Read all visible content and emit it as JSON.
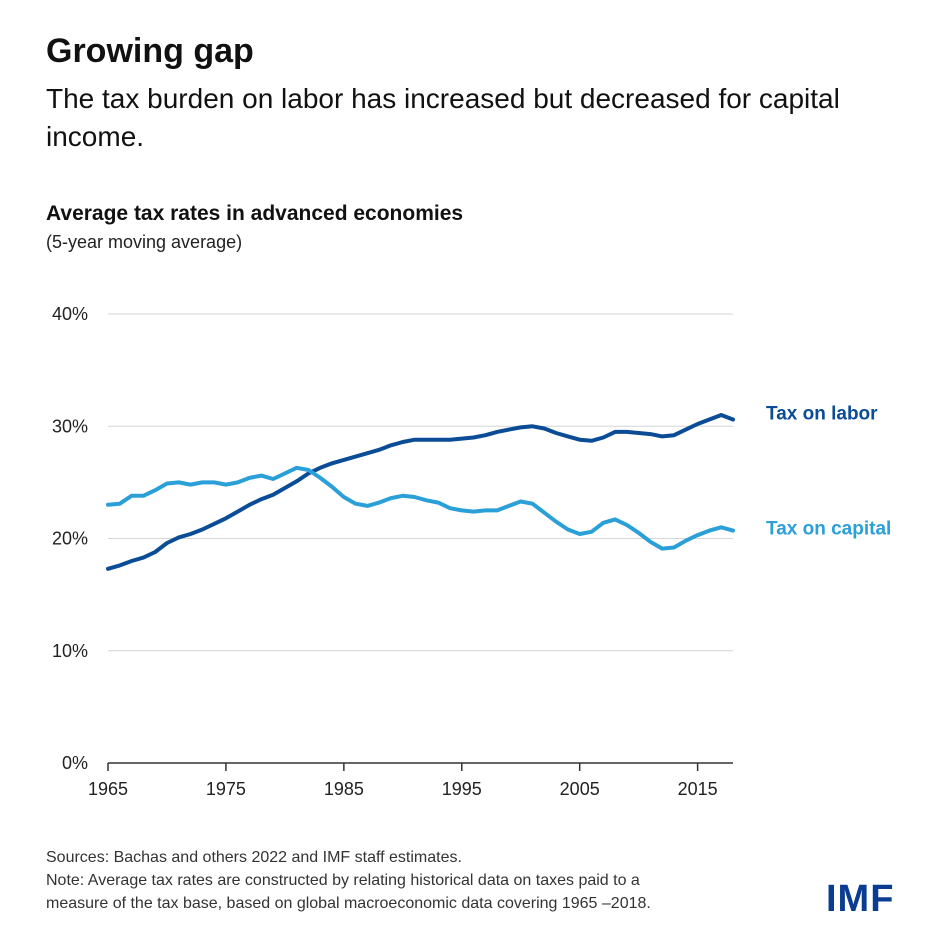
{
  "title": "Growing gap",
  "subtitle": "The tax burden on labor has increased but decreased for capital income.",
  "sources": "Sources: Bachas and others 2022 and IMF staff estimates.",
  "note_line1": "Note: Average tax rates are constructed by relating historical data on taxes paid to a",
  "note_line2": "measure of the tax base, based on global macroeconomic data  covering 1965 –2018.",
  "logo": "IMF",
  "chart_data": {
    "type": "line",
    "title": "Average tax rates in advanced economies",
    "subtitle": "(5-year moving average)",
    "xlabel": "",
    "ylabel": "",
    "xlim": [
      1965,
      2018
    ],
    "ylim": [
      0,
      40
    ],
    "yticks": [
      0,
      10,
      20,
      30,
      40
    ],
    "ytick_labels": [
      "0%",
      "10%",
      "20%",
      "30%",
      "40%"
    ],
    "xticks": [
      1965,
      1975,
      1985,
      1995,
      2005,
      2015
    ],
    "xtick_labels": [
      "1965",
      "1975",
      "1985",
      "1995",
      "2005",
      "2015"
    ],
    "grid": true,
    "legend_placement": "right, inline labels",
    "x": [
      1965,
      1966,
      1967,
      1968,
      1969,
      1970,
      1971,
      1972,
      1973,
      1974,
      1975,
      1976,
      1977,
      1978,
      1979,
      1980,
      1981,
      1982,
      1983,
      1984,
      1985,
      1986,
      1987,
      1988,
      1989,
      1990,
      1991,
      1992,
      1993,
      1994,
      1995,
      1996,
      1997,
      1998,
      1999,
      2000,
      2001,
      2002,
      2003,
      2004,
      2005,
      2006,
      2007,
      2008,
      2009,
      2010,
      2011,
      2012,
      2013,
      2014,
      2015,
      2016,
      2017,
      2018
    ],
    "series": [
      {
        "name": "Tax on labor",
        "color": "#0b4c96",
        "values": [
          17.3,
          17.6,
          18.0,
          18.3,
          18.8,
          19.6,
          20.1,
          20.4,
          20.8,
          21.3,
          21.8,
          22.4,
          23.0,
          23.5,
          23.9,
          24.5,
          25.1,
          25.8,
          26.3,
          26.7,
          27.0,
          27.3,
          27.6,
          27.9,
          28.3,
          28.6,
          28.8,
          28.8,
          28.8,
          28.8,
          28.9,
          29.0,
          29.2,
          29.5,
          29.7,
          29.9,
          30.0,
          29.8,
          29.4,
          29.1,
          28.8,
          28.7,
          29.0,
          29.5,
          29.5,
          29.4,
          29.3,
          29.1,
          29.2,
          29.7,
          30.2,
          30.6,
          31.0,
          30.6
        ]
      },
      {
        "name": "Tax on capital",
        "color": "#2a9fd8",
        "values": [
          23.0,
          23.1,
          23.8,
          23.8,
          24.3,
          24.9,
          25.0,
          24.8,
          25.0,
          25.0,
          24.8,
          25.0,
          25.4,
          25.6,
          25.3,
          25.8,
          26.3,
          26.1,
          25.4,
          24.6,
          23.7,
          23.1,
          22.9,
          23.2,
          23.6,
          23.8,
          23.7,
          23.4,
          23.2,
          22.7,
          22.5,
          22.4,
          22.5,
          22.5,
          22.9,
          23.3,
          23.1,
          22.3,
          21.5,
          20.8,
          20.4,
          20.6,
          21.4,
          21.7,
          21.2,
          20.5,
          19.7,
          19.1,
          19.2,
          19.8,
          20.3,
          20.7,
          21.0,
          20.7
        ]
      }
    ]
  }
}
